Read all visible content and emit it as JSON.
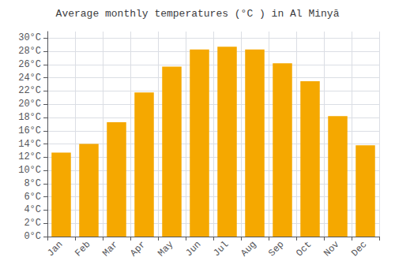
{
  "chart_data": {
    "type": "bar",
    "title": "Average monthly temperatures (°C ) in Al Minyā",
    "categories": [
      "Jan",
      "Feb",
      "Mar",
      "Apr",
      "May",
      "Jun",
      "Jul",
      "Aug",
      "Sep",
      "Oct",
      "Nov",
      "Dec"
    ],
    "values": [
      12.7,
      14.0,
      17.3,
      21.8,
      25.7,
      28.3,
      28.7,
      28.3,
      26.2,
      23.5,
      18.2,
      13.8
    ],
    "color": "#F5A800",
    "ylim": [
      0,
      31
    ],
    "yticks": [
      {
        "value": 0,
        "label": "0°C"
      },
      {
        "value": 2,
        "label": "2°C"
      },
      {
        "value": 4,
        "label": "4°C"
      },
      {
        "value": 6,
        "label": "6°C"
      },
      {
        "value": 8,
        "label": "8°C"
      },
      {
        "value": 10,
        "label": "10°C"
      },
      {
        "value": 12,
        "label": "12°C"
      },
      {
        "value": 14,
        "label": "14°C"
      },
      {
        "value": 16,
        "label": "16°C"
      },
      {
        "value": 18,
        "label": "18°C"
      },
      {
        "value": 20,
        "label": "20°C"
      },
      {
        "value": 22,
        "label": "22°C"
      },
      {
        "value": 24,
        "label": "24°C"
      },
      {
        "value": 26,
        "label": "26°C"
      },
      {
        "value": 28,
        "label": "28°C"
      },
      {
        "value": 30,
        "label": "30°C"
      }
    ],
    "grid": true
  }
}
